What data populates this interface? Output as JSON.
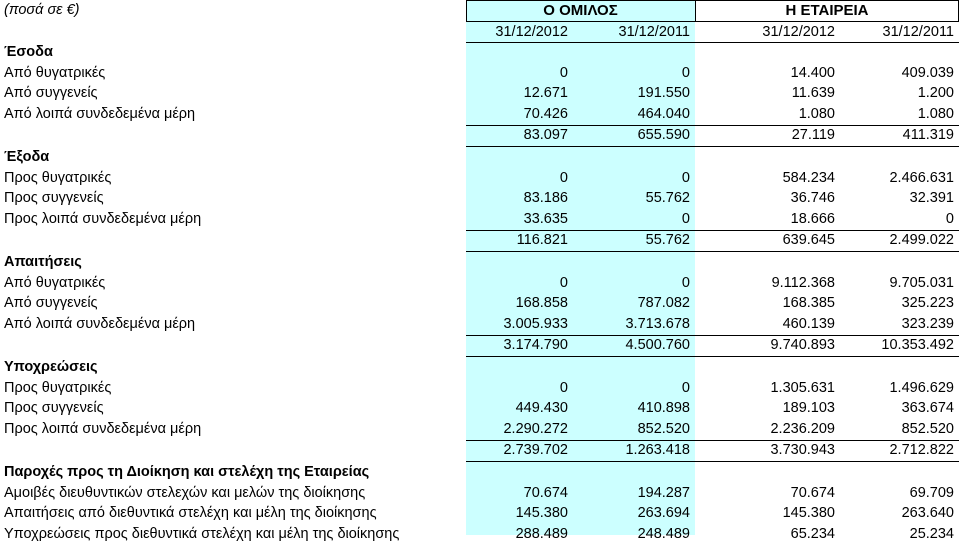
{
  "header": {
    "unit_note": "(ποσά σε €)",
    "group_label": "Ο ΟΜΙΛΟΣ",
    "company_label": "Η ΕΤΑΙΡΕΙΑ",
    "dates": [
      "31/12/2012",
      "31/12/2011",
      "31/12/2012",
      "31/12/2011"
    ]
  },
  "sections": [
    {
      "title": "Έσοδα",
      "rows": [
        {
          "label": "Από θυγατρικές",
          "values": [
            "0",
            "0",
            "14.400",
            "409.039"
          ]
        },
        {
          "label": "Από συγγενείς",
          "values": [
            "12.671",
            "191.550",
            "11.639",
            "1.200"
          ]
        },
        {
          "label": "Από λοιπά συνδεδεμένα μέρη",
          "values": [
            "70.426",
            "464.040",
            "1.080",
            "1.080"
          ]
        }
      ],
      "totals": [
        "83.097",
        "655.590",
        "27.119",
        "411.319"
      ]
    },
    {
      "title": "Έξοδα",
      "rows": [
        {
          "label": "Προς θυγατρικές",
          "values": [
            "0",
            "0",
            "584.234",
            "2.466.631"
          ]
        },
        {
          "label": "Προς συγγενείς",
          "values": [
            "83.186",
            "55.762",
            "36.746",
            "32.391"
          ]
        },
        {
          "label": "Προς λοιπά συνδεδεμένα μέρη",
          "values": [
            "33.635",
            "0",
            "18.666",
            "0"
          ]
        }
      ],
      "totals": [
        "116.821",
        "55.762",
        "639.645",
        "2.499.022"
      ]
    },
    {
      "title": "Απαιτήσεις",
      "rows": [
        {
          "label": "Από θυγατρικές",
          "values": [
            "0",
            "0",
            "9.112.368",
            "9.705.031"
          ]
        },
        {
          "label": "Από συγγενείς",
          "values": [
            "168.858",
            "787.082",
            "168.385",
            "325.223"
          ]
        },
        {
          "label": "Από λοιπά συνδεδεμένα μέρη",
          "values": [
            "3.005.933",
            "3.713.678",
            "460.139",
            "323.239"
          ]
        }
      ],
      "totals": [
        "3.174.790",
        "4.500.760",
        "9.740.893",
        "10.353.492"
      ]
    },
    {
      "title": "Υποχρεώσεις",
      "rows": [
        {
          "label": "Προς θυγατρικές",
          "values": [
            "0",
            "0",
            "1.305.631",
            "1.496.629"
          ]
        },
        {
          "label": "Προς συγγενείς",
          "values": [
            "449.430",
            "410.898",
            "189.103",
            "363.674"
          ]
        },
        {
          "label": "Προς λοιπά συνδεδεμένα μέρη",
          "values": [
            "2.290.272",
            "852.520",
            "2.236.209",
            "852.520"
          ]
        }
      ],
      "totals": [
        "2.739.702",
        "1.263.418",
        "3.730.943",
        "2.712.822"
      ]
    },
    {
      "title": "Παροχές προς τη Διοίκηση και στελέχη της Εταιρείας",
      "rows": [
        {
          "label": "Αμοιβές διευθυντικών στελεχών και μελών της διοίκησης",
          "values": [
            "70.674",
            "194.287",
            "70.674",
            "69.709"
          ]
        },
        {
          "label": "Απαιτήσεις από διεθυντικά στελέχη και μέλη της διοίκησης",
          "values": [
            "145.380",
            "263.694",
            "145.380",
            "263.640"
          ]
        },
        {
          "label": "Υποχρεώσεις προς διεθυντικά στελέχη και μέλη της διοίκησης",
          "values": [
            "288.489",
            "248.489",
            "65.234",
            "25.234"
          ]
        }
      ],
      "totals": null
    }
  ]
}
